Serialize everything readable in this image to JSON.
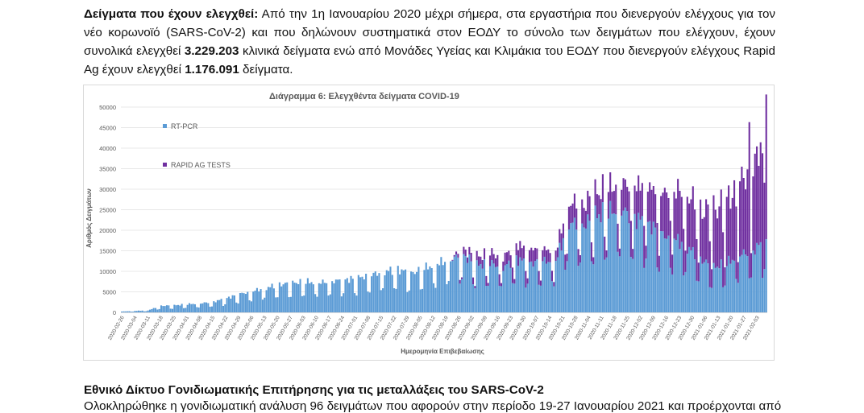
{
  "paragraph": {
    "label": "Δείγματα που έχουν ελεγχθεί:",
    "text1": " Από την 1η Ιανουαρίου 2020 μέχρι σήμερα, στα εργαστήρια που διενεργούν ελέγχους για τον νέο κορωνοϊό (SARS-CoV-2) και που δηλώνουν συστηματικά στον ΕΟΔΥ το σύνολο των δειγμάτων που ελέγχουν, έχουν συνολικά ελεγχθεί ",
    "total_pcr": "3.229.203",
    "text2": " κλινικά δείγματα ενώ από Μονάδες Υγείας και Κλιμάκια του ΕΟΔΥ που διενεργούν ελέγχους Rapid Ag έχουν ελεγχθεί ",
    "total_rapid": "1.176.091",
    "text3": " δείγματα."
  },
  "section": {
    "title": "Εθνικό Δίκτυο Γονιδιωματικής Επιτήρησης για τις μεταλλάξεις του SARS-CoV-2",
    "text": "Ολοκληρώθηκε η γονιδιωματική ανάλυση 96 δειγμάτων που αφορούν στην περίοδο 19-27 Ιανουαρίου 2021 και προέρχονται από"
  },
  "chart_data": {
    "type": "bar",
    "stacked": true,
    "title": "Διάγραμμα 6: Ελεγχθέντα δείγματα COVID-19",
    "xlabel": "Ημερομηνία Επιβεβαίωσης",
    "ylabel": "Αριθμός Δειγμάτων",
    "ylim": [
      0,
      50000
    ],
    "yticks": [
      "0",
      "5000",
      "10000",
      "15000",
      "20000",
      "25000",
      "30000",
      "35000",
      "40000",
      "45000",
      "50000"
    ],
    "xticks": [
      "2020-02-26",
      "2020-03-04",
      "2020-03-11",
      "2020-03-18",
      "2020-03-25",
      "2020-04-01",
      "2020-04-08",
      "2020-04-15",
      "2020-04-22",
      "2020-04-29",
      "2020-05-06",
      "2020-05-13",
      "2020-05-20",
      "2020-05-27",
      "2020-06-03",
      "2020-06-10",
      "2020-06-17",
      "2020-06-24",
      "2020-07-01",
      "2020-07-08",
      "2020-07-15",
      "2020-07-22",
      "2020-07-29",
      "2020-08-05",
      "2020-08-12",
      "2020-08-19",
      "2020-08-26",
      "2020-09-02",
      "2020-09-09",
      "2020-09-16",
      "2020-09-23",
      "2020-09-30",
      "2020-10-07",
      "2020-10-14",
      "2020-10-21",
      "2020-10-28",
      "2020-11-04",
      "2020-11-11",
      "2020-11-18",
      "2020-11-25",
      "2020-12-02",
      "2020-12-09",
      "2020-12-16",
      "2020-12-23",
      "2020-12-30",
      "2021-01-06",
      "2021-01-13",
      "2021-01-20",
      "2021-01-27",
      "2021-02-03"
    ],
    "series": [
      {
        "name": "RT-PCR",
        "color": "#5b9bd5"
      },
      {
        "name": "RAPID AG TESTS",
        "color": "#7030a0"
      }
    ],
    "anchors": {
      "x": [
        0,
        14,
        21,
        28,
        35,
        42,
        49,
        56,
        63,
        70,
        77,
        84,
        91,
        98,
        105,
        112,
        119,
        126,
        133,
        140,
        147,
        154,
        161,
        168,
        175,
        182,
        189,
        196,
        203,
        210,
        217,
        224,
        231,
        238,
        245,
        252,
        259,
        266,
        273,
        280,
        287,
        294,
        301,
        308,
        315,
        322,
        329,
        336,
        343
      ],
      "rtpcr": [
        200,
        500,
        1600,
        1700,
        2000,
        2200,
        2600,
        3500,
        4500,
        5200,
        6000,
        6800,
        7200,
        7500,
        7200,
        7600,
        8000,
        8400,
        9200,
        10000,
        10500,
        9500,
        10800,
        11800,
        13000,
        14000,
        11500,
        12000,
        11000,
        13000,
        12000,
        12500,
        12500,
        22000,
        21000,
        23500,
        24500,
        25000,
        23000,
        22000,
        19000,
        18000,
        16000,
        13000,
        11000,
        12000,
        14000,
        15000,
        18000
      ],
      "rapid": [
        0,
        0,
        0,
        0,
        0,
        0,
        0,
        0,
        0,
        0,
        0,
        0,
        0,
        0,
        0,
        0,
        0,
        0,
        0,
        0,
        0,
        0,
        0,
        0,
        0,
        1500,
        2000,
        2500,
        2500,
        3500,
        3500,
        3000,
        2500,
        5000,
        5000,
        5500,
        6000,
        6500,
        8000,
        9000,
        10000,
        12000,
        13000,
        12000,
        14000,
        15000,
        18000,
        20000,
        28000
      ]
    },
    "legend_position": "top-left"
  }
}
